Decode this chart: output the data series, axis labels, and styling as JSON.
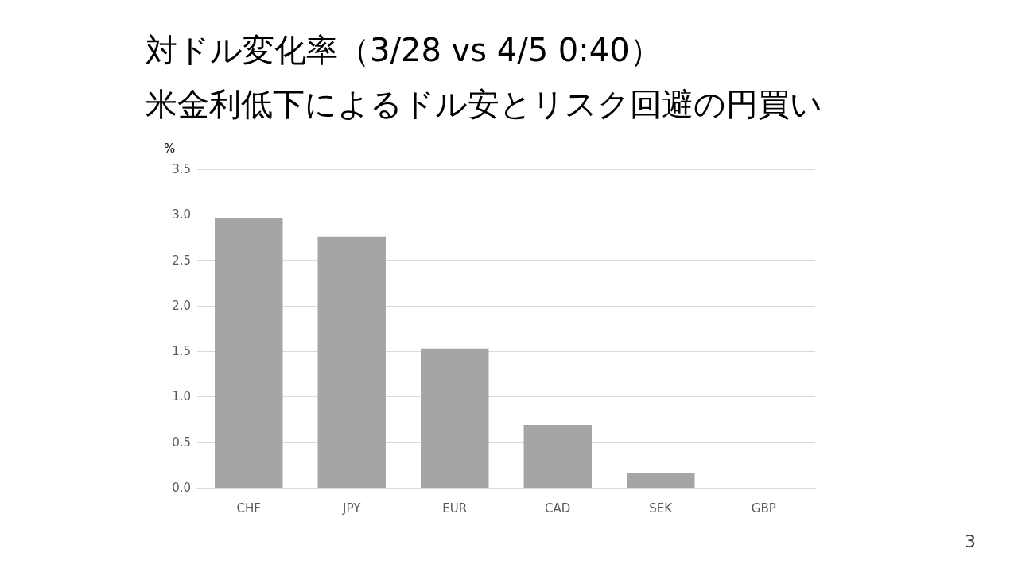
{
  "chart_data": {
    "type": "bar",
    "title": "対ドル変化率（3/28 vs 4/5 0:40）",
    "subtitle": "米金利低下によるドル安とリスク回避の円買い",
    "ylabel": "%",
    "categories": [
      "CHF",
      "JPY",
      "EUR",
      "CAD",
      "SEK",
      "GBP"
    ],
    "values": [
      2.96,
      2.76,
      1.53,
      0.69,
      0.16,
      0.0
    ],
    "color": "#a5a5a5",
    "ylim": [
      0,
      3.5
    ],
    "yticks": [
      {
        "value": 0,
        "label": "0.0"
      },
      {
        "value": 0.5,
        "label": "0.5"
      },
      {
        "value": 1,
        "label": "1.0"
      },
      {
        "value": 1.5,
        "label": "1.5"
      },
      {
        "value": 2,
        "label": "2.0"
      },
      {
        "value": 2.5,
        "label": "2.5"
      },
      {
        "value": 3,
        "label": "3.0"
      },
      {
        "value": 3.5,
        "label": "3.5"
      }
    ],
    "grid": "y",
    "annotations": [
      "3"
    ]
  }
}
